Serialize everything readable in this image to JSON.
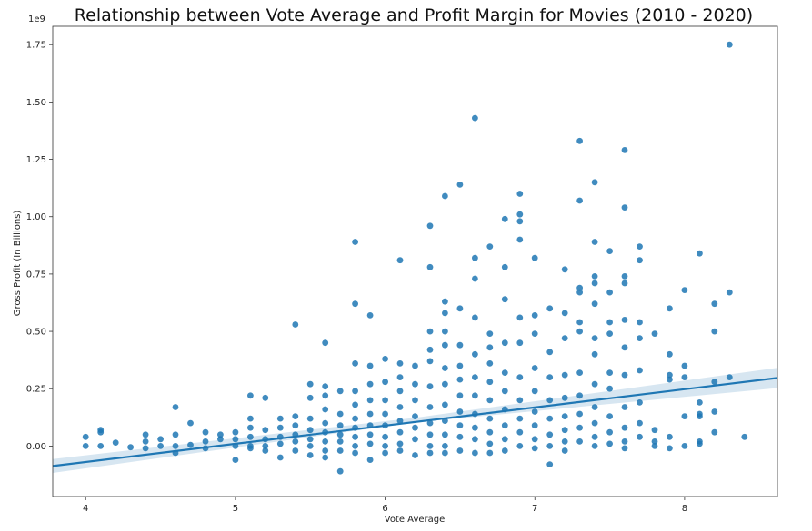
{
  "chart_data": {
    "type": "scatter",
    "title": "Relationship between Vote Average and Profit Margin for Movies (2010 - 2020)",
    "xlabel": "Vote Average",
    "ylabel": "Gross Profit (In Billions)",
    "y_offset_text": "1e9",
    "xlim": [
      3.78,
      8.62
    ],
    "ylim": [
      -0.22,
      1.83
    ],
    "xticks": [
      4,
      5,
      6,
      7,
      8
    ],
    "xtick_labels": [
      "4",
      "5",
      "6",
      "7",
      "8"
    ],
    "yticks": [
      0.0,
      0.25,
      0.5,
      0.75,
      1.0,
      1.25,
      1.5,
      1.75
    ],
    "ytick_labels": [
      "0.00",
      "0.25",
      "0.50",
      "0.75",
      "1.00",
      "1.25",
      "1.50",
      "1.75"
    ],
    "grid": false,
    "colors": {
      "points": "#1f77b4",
      "line": "#1f77b4",
      "band": "#1f77b4"
    },
    "series": [
      {
        "values": [
          [
            4.0,
            0.04
          ],
          [
            4.0,
            0.0
          ],
          [
            4.1,
            0.07
          ],
          [
            4.1,
            0.06
          ],
          [
            4.1,
            0.0
          ],
          [
            4.2,
            0.015
          ],
          [
            4.3,
            -0.005
          ],
          [
            4.4,
            0.05
          ],
          [
            4.4,
            0.02
          ],
          [
            4.4,
            -0.01
          ],
          [
            4.5,
            0.03
          ],
          [
            4.5,
            0.0
          ],
          [
            4.6,
            0.17
          ],
          [
            4.6,
            0.05
          ],
          [
            4.6,
            0.0
          ],
          [
            4.6,
            -0.03
          ],
          [
            4.7,
            0.1
          ],
          [
            4.7,
            0.005
          ],
          [
            4.8,
            0.06
          ],
          [
            4.8,
            0.02
          ],
          [
            4.8,
            -0.01
          ],
          [
            4.9,
            0.05
          ],
          [
            4.9,
            0.03
          ],
          [
            5.0,
            0.06
          ],
          [
            5.0,
            0.03
          ],
          [
            5.0,
            0.0
          ],
          [
            5.0,
            -0.06
          ],
          [
            5.1,
            0.22
          ],
          [
            5.1,
            0.12
          ],
          [
            5.1,
            0.08
          ],
          [
            5.1,
            0.04
          ],
          [
            5.1,
            0.0
          ],
          [
            5.1,
            -0.01
          ],
          [
            5.2,
            0.21
          ],
          [
            5.2,
            0.07
          ],
          [
            5.2,
            0.03
          ],
          [
            5.2,
            0.0
          ],
          [
            5.2,
            -0.02
          ],
          [
            5.3,
            0.12
          ],
          [
            5.3,
            0.08
          ],
          [
            5.3,
            0.04
          ],
          [
            5.3,
            0.01
          ],
          [
            5.3,
            -0.05
          ],
          [
            5.4,
            0.53
          ],
          [
            5.4,
            0.13
          ],
          [
            5.4,
            0.09
          ],
          [
            5.4,
            0.05
          ],
          [
            5.4,
            0.02
          ],
          [
            5.4,
            -0.02
          ],
          [
            5.5,
            0.27
          ],
          [
            5.5,
            0.21
          ],
          [
            5.5,
            0.12
          ],
          [
            5.5,
            0.07
          ],
          [
            5.5,
            0.03
          ],
          [
            5.5,
            0.0
          ],
          [
            5.5,
            -0.04
          ],
          [
            5.6,
            0.45
          ],
          [
            5.6,
            0.26
          ],
          [
            5.6,
            0.22
          ],
          [
            5.6,
            0.16
          ],
          [
            5.6,
            0.1
          ],
          [
            5.6,
            0.06
          ],
          [
            5.6,
            0.02
          ],
          [
            5.6,
            -0.02
          ],
          [
            5.6,
            -0.05
          ],
          [
            5.7,
            0.24
          ],
          [
            5.7,
            0.14
          ],
          [
            5.7,
            0.09
          ],
          [
            5.7,
            0.05
          ],
          [
            5.7,
            0.02
          ],
          [
            5.7,
            -0.02
          ],
          [
            5.7,
            -0.11
          ],
          [
            5.8,
            0.89
          ],
          [
            5.8,
            0.62
          ],
          [
            5.8,
            0.36
          ],
          [
            5.8,
            0.24
          ],
          [
            5.8,
            0.18
          ],
          [
            5.8,
            0.12
          ],
          [
            5.8,
            0.08
          ],
          [
            5.8,
            0.04
          ],
          [
            5.8,
            0.0
          ],
          [
            5.8,
            -0.03
          ],
          [
            5.9,
            0.57
          ],
          [
            5.9,
            0.35
          ],
          [
            5.9,
            0.27
          ],
          [
            5.9,
            0.2
          ],
          [
            5.9,
            0.14
          ],
          [
            5.9,
            0.09
          ],
          [
            5.9,
            0.05
          ],
          [
            5.9,
            0.01
          ],
          [
            5.9,
            -0.06
          ],
          [
            6.0,
            0.38
          ],
          [
            6.0,
            0.28
          ],
          [
            6.0,
            0.2
          ],
          [
            6.0,
            0.14
          ],
          [
            6.0,
            0.09
          ],
          [
            6.0,
            0.04
          ],
          [
            6.0,
            0.0
          ],
          [
            6.0,
            -0.03
          ],
          [
            6.1,
            0.81
          ],
          [
            6.1,
            0.36
          ],
          [
            6.1,
            0.3
          ],
          [
            6.1,
            0.24
          ],
          [
            6.1,
            0.17
          ],
          [
            6.1,
            0.11
          ],
          [
            6.1,
            0.06
          ],
          [
            6.1,
            0.01
          ],
          [
            6.1,
            -0.02
          ],
          [
            6.2,
            0.35
          ],
          [
            6.2,
            0.27
          ],
          [
            6.2,
            0.2
          ],
          [
            6.2,
            0.13
          ],
          [
            6.2,
            0.08
          ],
          [
            6.2,
            0.03
          ],
          [
            6.2,
            -0.04
          ],
          [
            6.3,
            0.96
          ],
          [
            6.3,
            0.78
          ],
          [
            6.3,
            0.5
          ],
          [
            6.3,
            0.42
          ],
          [
            6.3,
            0.37
          ],
          [
            6.3,
            0.26
          ],
          [
            6.3,
            0.17
          ],
          [
            6.3,
            0.1
          ],
          [
            6.3,
            0.05
          ],
          [
            6.3,
            0.0
          ],
          [
            6.3,
            -0.03
          ],
          [
            6.4,
            1.09
          ],
          [
            6.4,
            0.63
          ],
          [
            6.4,
            0.58
          ],
          [
            6.4,
            0.5
          ],
          [
            6.4,
            0.44
          ],
          [
            6.4,
            0.34
          ],
          [
            6.4,
            0.27
          ],
          [
            6.4,
            0.18
          ],
          [
            6.4,
            0.11
          ],
          [
            6.4,
            0.05
          ],
          [
            6.4,
            0.0
          ],
          [
            6.4,
            -0.03
          ],
          [
            6.5,
            1.14
          ],
          [
            6.5,
            0.6
          ],
          [
            6.5,
            0.44
          ],
          [
            6.5,
            0.35
          ],
          [
            6.5,
            0.29
          ],
          [
            6.5,
            0.22
          ],
          [
            6.5,
            0.15
          ],
          [
            6.5,
            0.09
          ],
          [
            6.5,
            0.04
          ],
          [
            6.5,
            -0.02
          ],
          [
            6.6,
            1.43
          ],
          [
            6.6,
            0.82
          ],
          [
            6.6,
            0.73
          ],
          [
            6.6,
            0.56
          ],
          [
            6.6,
            0.4
          ],
          [
            6.6,
            0.3
          ],
          [
            6.6,
            0.22
          ],
          [
            6.6,
            0.14
          ],
          [
            6.6,
            0.08
          ],
          [
            6.6,
            0.03
          ],
          [
            6.6,
            -0.03
          ],
          [
            6.7,
            0.87
          ],
          [
            6.7,
            0.49
          ],
          [
            6.7,
            0.43
          ],
          [
            6.7,
            0.36
          ],
          [
            6.7,
            0.28
          ],
          [
            6.7,
            0.2
          ],
          [
            6.7,
            0.12
          ],
          [
            6.7,
            0.06
          ],
          [
            6.7,
            0.01
          ],
          [
            6.7,
            -0.03
          ],
          [
            6.8,
            0.99
          ],
          [
            6.8,
            0.78
          ],
          [
            6.8,
            0.64
          ],
          [
            6.8,
            0.45
          ],
          [
            6.8,
            0.32
          ],
          [
            6.8,
            0.24
          ],
          [
            6.8,
            0.16
          ],
          [
            6.8,
            0.09
          ],
          [
            6.8,
            0.03
          ],
          [
            6.8,
            -0.02
          ],
          [
            6.9,
            1.1
          ],
          [
            6.9,
            1.01
          ],
          [
            6.9,
            0.98
          ],
          [
            6.9,
            0.9
          ],
          [
            6.9,
            0.56
          ],
          [
            6.9,
            0.45
          ],
          [
            6.9,
            0.3
          ],
          [
            6.9,
            0.2
          ],
          [
            6.9,
            0.12
          ],
          [
            6.9,
            0.06
          ],
          [
            6.9,
            0.0
          ],
          [
            7.0,
            0.82
          ],
          [
            7.0,
            0.57
          ],
          [
            7.0,
            0.49
          ],
          [
            7.0,
            0.34
          ],
          [
            7.0,
            0.24
          ],
          [
            7.0,
            0.15
          ],
          [
            7.0,
            0.09
          ],
          [
            7.0,
            0.03
          ],
          [
            7.0,
            -0.01
          ],
          [
            7.1,
            0.6
          ],
          [
            7.1,
            0.41
          ],
          [
            7.1,
            0.3
          ],
          [
            7.1,
            0.2
          ],
          [
            7.1,
            0.12
          ],
          [
            7.1,
            0.05
          ],
          [
            7.1,
            0.0
          ],
          [
            7.1,
            -0.08
          ],
          [
            7.2,
            0.77
          ],
          [
            7.2,
            0.58
          ],
          [
            7.2,
            0.47
          ],
          [
            7.2,
            0.31
          ],
          [
            7.2,
            0.21
          ],
          [
            7.2,
            0.13
          ],
          [
            7.2,
            0.07
          ],
          [
            7.2,
            0.02
          ],
          [
            7.2,
            -0.02
          ],
          [
            7.3,
            1.33
          ],
          [
            7.3,
            1.07
          ],
          [
            7.3,
            0.69
          ],
          [
            7.3,
            0.67
          ],
          [
            7.3,
            0.54
          ],
          [
            7.3,
            0.5
          ],
          [
            7.3,
            0.32
          ],
          [
            7.3,
            0.22
          ],
          [
            7.3,
            0.14
          ],
          [
            7.3,
            0.08
          ],
          [
            7.3,
            0.02
          ],
          [
            7.4,
            1.15
          ],
          [
            7.4,
            0.89
          ],
          [
            7.4,
            0.74
          ],
          [
            7.4,
            0.71
          ],
          [
            7.4,
            0.62
          ],
          [
            7.4,
            0.47
          ],
          [
            7.4,
            0.4
          ],
          [
            7.4,
            0.27
          ],
          [
            7.4,
            0.17
          ],
          [
            7.4,
            0.1
          ],
          [
            7.4,
            0.04
          ],
          [
            7.4,
            0.0
          ],
          [
            7.5,
            0.85
          ],
          [
            7.5,
            0.67
          ],
          [
            7.5,
            0.54
          ],
          [
            7.5,
            0.49
          ],
          [
            7.5,
            0.32
          ],
          [
            7.5,
            0.25
          ],
          [
            7.5,
            0.13
          ],
          [
            7.5,
            0.06
          ],
          [
            7.5,
            0.01
          ],
          [
            7.6,
            1.29
          ],
          [
            7.6,
            1.04
          ],
          [
            7.6,
            0.74
          ],
          [
            7.6,
            0.71
          ],
          [
            7.6,
            0.55
          ],
          [
            7.6,
            0.43
          ],
          [
            7.6,
            0.31
          ],
          [
            7.6,
            0.17
          ],
          [
            7.6,
            0.08
          ],
          [
            7.6,
            0.02
          ],
          [
            7.6,
            -0.01
          ],
          [
            7.7,
            0.87
          ],
          [
            7.7,
            0.81
          ],
          [
            7.7,
            0.54
          ],
          [
            7.7,
            0.47
          ],
          [
            7.7,
            0.33
          ],
          [
            7.7,
            0.19
          ],
          [
            7.7,
            0.1
          ],
          [
            7.7,
            0.04
          ],
          [
            7.8,
            0.49
          ],
          [
            7.8,
            0.07
          ],
          [
            7.8,
            0.02
          ],
          [
            7.8,
            0.0
          ],
          [
            7.9,
            0.6
          ],
          [
            7.9,
            0.4
          ],
          [
            7.9,
            0.31
          ],
          [
            7.9,
            0.29
          ],
          [
            7.9,
            0.04
          ],
          [
            7.9,
            -0.01
          ],
          [
            8.0,
            0.68
          ],
          [
            8.0,
            0.35
          ],
          [
            8.0,
            0.3
          ],
          [
            8.0,
            0.13
          ],
          [
            8.0,
            0.0
          ],
          [
            8.1,
            0.84
          ],
          [
            8.1,
            0.19
          ],
          [
            8.1,
            0.14
          ],
          [
            8.1,
            0.13
          ],
          [
            8.1,
            0.02
          ],
          [
            8.1,
            0.01
          ],
          [
            8.2,
            0.62
          ],
          [
            8.2,
            0.5
          ],
          [
            8.2,
            0.28
          ],
          [
            8.2,
            0.15
          ],
          [
            8.2,
            0.06
          ],
          [
            8.3,
            1.75
          ],
          [
            8.3,
            0.67
          ],
          [
            8.3,
            0.3
          ],
          [
            8.4,
            0.04
          ]
        ]
      }
    ],
    "regression": {
      "x": [
        3.78,
        8.62
      ],
      "y": [
        -0.087,
        0.297
      ]
    },
    "confidence_band": {
      "x": [
        3.78,
        6.2,
        8.62
      ],
      "lower": [
        -0.117,
        0.103,
        0.253
      ],
      "upper": [
        -0.057,
        0.123,
        0.341
      ]
    }
  }
}
